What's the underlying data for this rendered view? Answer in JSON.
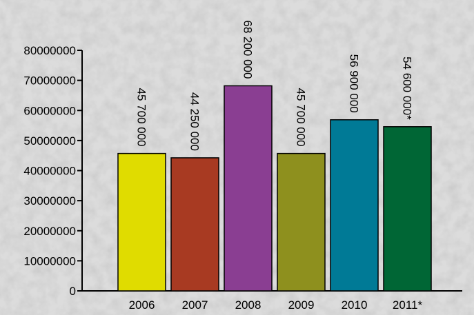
{
  "chart_data": {
    "type": "bar",
    "title": "",
    "xlabel": "",
    "ylabel": "",
    "categories": [
      "2006",
      "2007",
      "2008",
      "2009",
      "2010",
      "2011*"
    ],
    "values": [
      45700000,
      44250000,
      68200000,
      45700000,
      56900000,
      54600000
    ],
    "value_labels": [
      "45 700 000",
      "44 250 000",
      "68 200 000",
      "45 700 000",
      "56 900 000",
      "54 600 000*"
    ],
    "bar_colors": [
      "#e0dc00",
      "#a83a22",
      "#8a3e92",
      "#8e901e",
      "#007a96",
      "#006635"
    ],
    "ylim": [
      0,
      80000000
    ],
    "yticks": [
      0,
      10000000,
      20000000,
      30000000,
      40000000,
      50000000,
      60000000,
      70000000,
      80000000
    ],
    "ytick_labels": [
      "0",
      "10000000",
      "20000000",
      "30000000",
      "40000000",
      "50000000",
      "60000000",
      "70000000",
      "80000000"
    ],
    "grid": false,
    "legend": "none"
  },
  "background": {
    "description_color": "#d9d9d9"
  }
}
